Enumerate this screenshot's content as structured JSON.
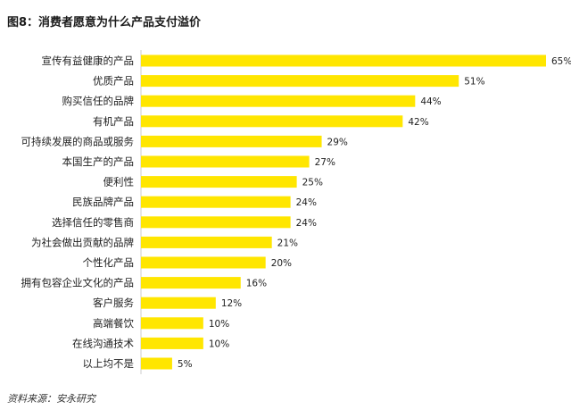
{
  "chart_data": {
    "type": "bar",
    "orientation": "horizontal",
    "title": "图8：消费者愿意为什么产品支付溢价",
    "categories": [
      "宣传有益健康的产品",
      "优质产品",
      "购买信任的品牌",
      "有机产品",
      "可持续发展的商品或服务",
      "本国生产的产品",
      "便利性",
      "民族品牌产品",
      "选择信任的零售商",
      "为社会做出贡献的品牌",
      "个性化产品",
      "拥有包容企业文化的产品",
      "客户服务",
      "高端餐饮",
      "在线沟通技术",
      "以上均不是"
    ],
    "values": [
      65,
      51,
      44,
      42,
      29,
      27,
      25,
      24,
      24,
      21,
      20,
      16,
      12,
      10,
      10,
      5
    ],
    "value_suffix": "%",
    "xlim": [
      0,
      65
    ],
    "grid": false,
    "legend": "none",
    "bar_color": "#FFE600",
    "source": "资料来源：安永研究"
  }
}
